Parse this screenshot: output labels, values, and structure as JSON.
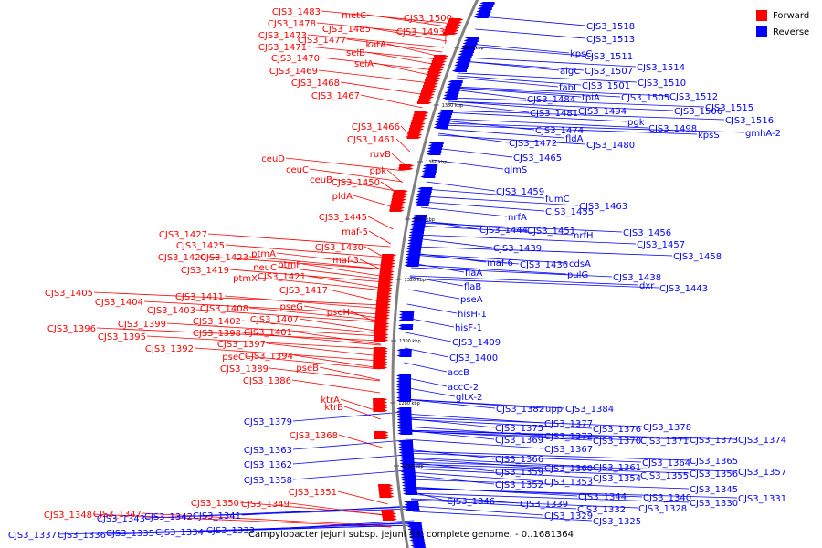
{
  "legend": [
    {
      "label": "Forward",
      "color": "#ff0000"
    },
    {
      "label": "Reverse",
      "color": "#0000ff"
    }
  ],
  "caption": "Campylobacter jejuni subsp. jejuni S3, complete genome. - 0..1681364",
  "ticks": [
    "1400 kbp",
    "1380 kbp",
    "1360 kbp",
    "1340 kbp",
    "1320 kbp",
    "1300 kbp",
    "1280 kbp",
    "1260 kbp"
  ],
  "forward_labels": [
    "CJS3_1483",
    "metC",
    "CJS3_1500",
    "CJS3_1478",
    "CJS3_1485",
    "CJS3_1493",
    "CJS3_1473",
    "CJS3_1477",
    "katA",
    "CJS3_1471",
    "selB",
    "CJS3_1470",
    "selA",
    "CJS3_1469",
    "CJS3_1468",
    "CJS3_1467",
    "CJS3_1466",
    "CJS3_1461",
    "ruvB",
    "ceuD",
    "ceuC",
    "ppk",
    "ceuB",
    "CJS3_1450",
    "pldA",
    "CJS3_1445",
    "maf-5",
    "CJS3_1427",
    "CJS3_1425",
    "CJS3_1430",
    "CJS3_1420",
    "CJS3_1423",
    "ptmA",
    "maf-3",
    "neuC",
    "ptmF",
    "CJS3_1419",
    "ptmX",
    "CJS3_1421",
    "CJS3_1417",
    "CJS3_1405",
    "CJS3_1411",
    "CJS3_1404",
    "CJS3_1408",
    "pseG",
    "CJS3_1403",
    "pseH",
    "CJS3_1402",
    "CJS3_1407",
    "CJS3_1399",
    "CJS3_1401",
    "CJS3_1396",
    "CJS3_1398",
    "CJS3_1395",
    "CJS3_1397",
    "CJS3_1392",
    "pseC",
    "CJS3_1394",
    "CJS3_1389",
    "pseB",
    "CJS3_1386",
    "ktrA",
    "ktrB",
    "CJS3_1368",
    "CJS3_1351",
    "CJS3_1350",
    "CJS3_1349",
    "CJS3_1348",
    "CJS3_1347"
  ],
  "reverse_labels": [
    "CJS3_1518",
    "CJS3_1513",
    "kpsC",
    "CJS3_1511",
    "algC",
    "CJS3_1507",
    "CJS3_1514",
    "fabI",
    "CJS3_1501",
    "CJS3_1510",
    "tpiA",
    "CJS3_1505",
    "CJS3_1512",
    "CJS3_1484",
    "CJS3_1481",
    "CJS3_1494",
    "pgk",
    "CJS3_1506",
    "CJS3_1515",
    "CJS3_1516",
    "CJS3_1498",
    "kpsS",
    "gmhA-2",
    "CJS3_1474",
    "fldA",
    "CJS3_1472",
    "CJS3_1480",
    "CJS3_1465",
    "glmS",
    "CJS3_1459",
    "fumC",
    "CJS3_1463",
    "CJS3_1455",
    "nrfA",
    "CJS3_1444",
    "CJS3_1451",
    "nrfH",
    "CJS3_1456",
    "CJS3_1457",
    "CJS3_1439",
    "CJS3_1458",
    "maf-6",
    "CJS3_1436",
    "cdsA",
    "flaA",
    "pulG",
    "CJS3_1438",
    "flaB",
    "dxr",
    "CJS3_1443",
    "pseA",
    "hisH-1",
    "hisF-1",
    "CJS3_1409",
    "CJS3_1400",
    "accB",
    "accC-2",
    "gltX-2",
    "CJS3_1382",
    "upp",
    "CJS3_1384",
    "CJS3_1379",
    "CJS3_1375",
    "CJS3_1377",
    "CJS3_1376",
    "CJS3_1378",
    "CJS3_1369",
    "CJS3_1372",
    "CJS3_1370",
    "CJS3_1371",
    "CJS3_1373",
    "CJS3_1374",
    "CJS3_1363",
    "CJS3_1367",
    "CJS3_1366",
    "CJS3_1364",
    "CJS3_1365",
    "CJS3_1362",
    "CJS3_1359",
    "CJS3_1360",
    "CJS3_1361",
    "CJS3_1354",
    "CJS3_1355",
    "CJS3_1356",
    "CJS3_1357",
    "CJS3_1358",
    "CJS3_1352",
    "CJS3_1353",
    "CJS3_1345",
    "CJS3_1340",
    "CJS3_1346",
    "CJS3_1344",
    "CJS3_1330",
    "CJS3_1331",
    "CJS3_1339",
    "CJS3_1332",
    "CJS3_1328",
    "CJS3_1343",
    "CJS3_1342",
    "CJS3_1341",
    "CJS3_1329",
    "CJS3_1325",
    "CJS3_1337",
    "CJS3_1336",
    "CJS3_1335",
    "CJS3_1334",
    "CJS3_1333"
  ]
}
